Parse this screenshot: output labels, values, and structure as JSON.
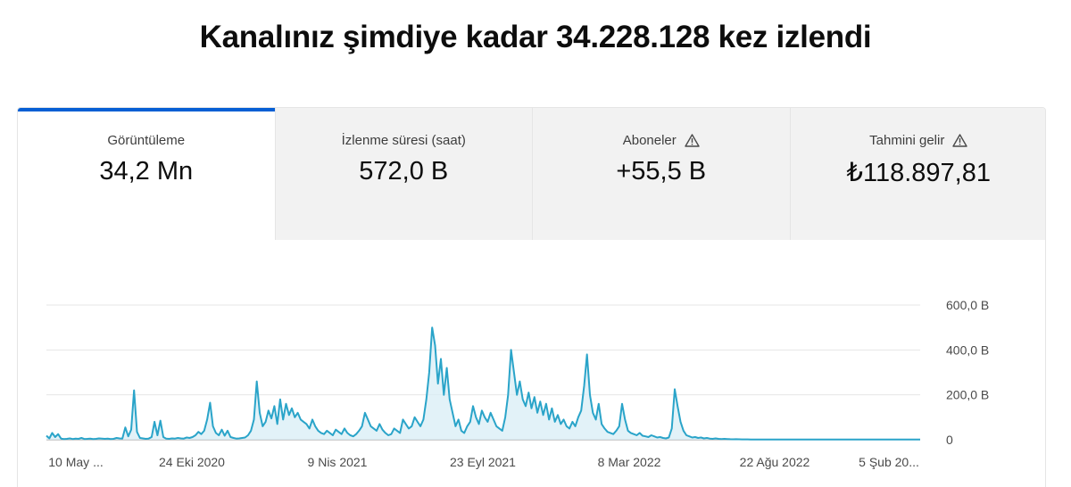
{
  "headline": "Kanalınız şimdiye kadar 34.228.128 kez izlendi",
  "tabs": [
    {
      "label": "Görüntüleme",
      "value": "34,2 Mn",
      "warning": false,
      "active": true
    },
    {
      "label": "İzlenme süresi (saat)",
      "value": "572,0 B",
      "warning": false,
      "active": false
    },
    {
      "label": "Aboneler",
      "value": "+55,5 B",
      "warning": true,
      "active": false
    },
    {
      "label": "Tahmini gelir",
      "value": "₺118.897,81",
      "warning": true,
      "active": false
    }
  ],
  "colors": {
    "accent": "#065fd4",
    "series": "#2aa4c9",
    "area": "#d8eef6"
  },
  "chart_data": {
    "type": "line",
    "y_ticks": [
      "600,0 B",
      "400,0 B",
      "200,0 B",
      "0"
    ],
    "y_tick_values": [
      600000,
      400000,
      200000,
      0
    ],
    "ylim": [
      0,
      600000
    ],
    "x_tick_labels": [
      "10 May ...",
      "24 Eki 2020",
      "9 Nis 2021",
      "23 Eyl 2021",
      "8 Mar 2022",
      "22 Ağu 2022",
      "5 Şub 20..."
    ],
    "series": [
      {
        "values": [
          18000,
          6000,
          30000,
          12000,
          25000,
          5000,
          3000,
          4000,
          6000,
          3000,
          5000,
          4000,
          8000,
          3000,
          4000,
          5000,
          3000,
          4000,
          6000,
          5000,
          4000,
          5000,
          3000,
          4000,
          8000,
          6000,
          5000,
          55000,
          15000,
          45000,
          220000,
          35000,
          8000,
          6000,
          4000,
          5000,
          12000,
          80000,
          20000,
          85000,
          12000,
          5000,
          4000,
          6000,
          5000,
          8000,
          6000,
          5000,
          10000,
          8000,
          12000,
          20000,
          35000,
          25000,
          40000,
          90000,
          165000,
          60000,
          30000,
          20000,
          45000,
          18000,
          40000,
          12000,
          8000,
          5000,
          6000,
          8000,
          10000,
          20000,
          40000,
          90000,
          260000,
          120000,
          60000,
          80000,
          130000,
          95000,
          150000,
          70000,
          180000,
          90000,
          160000,
          110000,
          140000,
          100000,
          120000,
          90000,
          80000,
          70000,
          50000,
          90000,
          60000,
          40000,
          30000,
          25000,
          40000,
          30000,
          20000,
          45000,
          35000,
          25000,
          50000,
          30000,
          20000,
          15000,
          25000,
          40000,
          60000,
          120000,
          90000,
          60000,
          50000,
          40000,
          70000,
          45000,
          30000,
          20000,
          25000,
          50000,
          40000,
          30000,
          90000,
          70000,
          50000,
          60000,
          100000,
          80000,
          60000,
          90000,
          180000,
          300000,
          500000,
          420000,
          250000,
          360000,
          200000,
          320000,
          180000,
          120000,
          60000,
          90000,
          40000,
          30000,
          60000,
          80000,
          150000,
          100000,
          70000,
          130000,
          100000,
          80000,
          120000,
          90000,
          60000,
          50000,
          40000,
          100000,
          200000,
          400000,
          300000,
          200000,
          260000,
          180000,
          150000,
          210000,
          140000,
          190000,
          120000,
          170000,
          110000,
          160000,
          90000,
          140000,
          80000,
          110000,
          70000,
          90000,
          60000,
          50000,
          80000,
          60000,
          100000,
          130000,
          240000,
          380000,
          200000,
          120000,
          90000,
          160000,
          70000,
          50000,
          35000,
          30000,
          25000,
          40000,
          60000,
          160000,
          90000,
          40000,
          30000,
          25000,
          20000,
          30000,
          18000,
          15000,
          12000,
          20000,
          15000,
          10000,
          12000,
          8000,
          6000,
          10000,
          50000,
          225000,
          150000,
          80000,
          40000,
          20000,
          15000,
          10000,
          12000,
          8000,
          10000,
          6000,
          8000,
          5000,
          4000,
          6000,
          4000,
          3000,
          4000,
          3000,
          2500,
          2000,
          2500,
          2000,
          1500,
          1500,
          1500,
          1200,
          1200,
          1000,
          1000,
          1000,
          1000,
          1000,
          1000,
          1000,
          1000,
          1000,
          1000,
          1000,
          1000,
          1000,
          1000,
          1000,
          1000,
          1000,
          1000,
          1000,
          1000,
          1000,
          1000,
          1000,
          1000,
          1000,
          1000,
          1000,
          1000,
          1000,
          1000,
          1000,
          1000,
          1000,
          1000,
          1000,
          1000,
          1000,
          1000,
          1000,
          1000,
          1000,
          1000,
          1000,
          1000,
          1000,
          1000,
          1000,
          1000,
          1000,
          1000,
          1000,
          1000,
          1000,
          1000,
          1000,
          1000,
          1000
        ]
      }
    ]
  }
}
